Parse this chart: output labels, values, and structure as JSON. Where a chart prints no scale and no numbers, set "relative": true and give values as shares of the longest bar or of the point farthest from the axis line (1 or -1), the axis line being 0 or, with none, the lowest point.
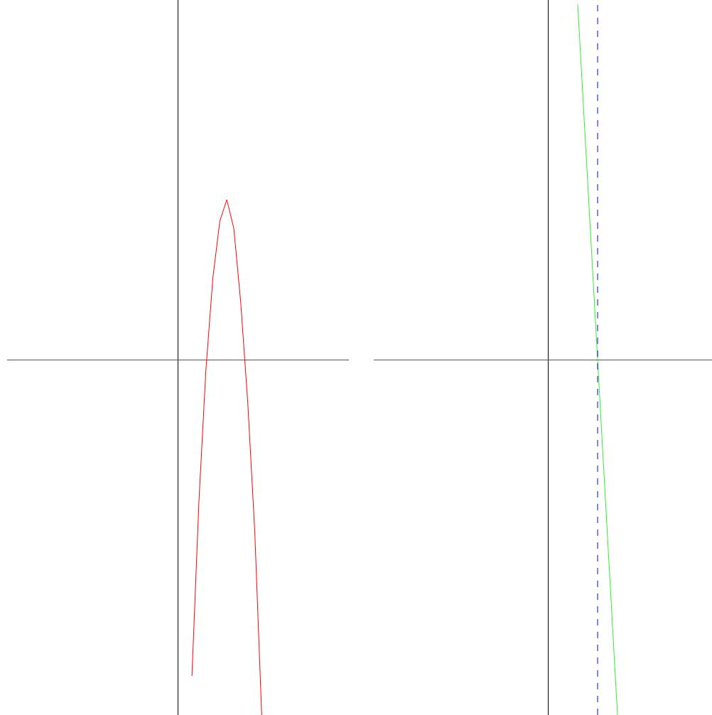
{
  "chart_data": [
    {
      "type": "line",
      "relative": true,
      "categories": [
        null,
        null,
        null,
        null,
        null,
        null,
        null,
        null,
        null,
        null,
        null,
        null,
        null,
        null,
        null,
        null,
        null,
        null,
        null,
        null,
        null,
        null,
        null,
        null,
        null,
        null,
        null,
        null,
        null,
        null,
        null,
        null,
        null,
        null,
        null,
        null,
        null,
        null,
        null,
        null,
        null,
        null,
        null,
        null,
        null,
        null,
        null,
        null,
        null
      ],
      "series": [
        {
          "color": "#ff0000",
          "values": [
            null,
            null,
            null,
            null,
            null,
            null,
            null,
            null,
            null,
            null,
            null,
            null,
            null,
            null,
            null,
            null,
            null,
            null,
            null,
            null,
            null,
            null,
            null,
            null,
            null,
            null,
            -0.89,
            -0.4,
            -0.03,
            0.23,
            0.39,
            0.45,
            0.37,
            0.16,
            -0.12,
            -0.48,
            -1.0,
            null,
            null,
            null,
            null,
            null,
            null,
            null,
            null,
            null,
            null,
            null,
            null
          ]
        }
      ],
      "marker": "none",
      "line_style": "solid"
    },
    {
      "type": "line",
      "relative": true,
      "categories": [
        null,
        null,
        null,
        null,
        null,
        null,
        null,
        null,
        null,
        null,
        null,
        null,
        null,
        null,
        null,
        null,
        null,
        null,
        null,
        null,
        null,
        null,
        null,
        null,
        null,
        null,
        null,
        null,
        null,
        null,
        null,
        null,
        null,
        null
      ],
      "series": [
        {
          "color": "#33ee33",
          "values": [
            null,
            null,
            null,
            null,
            null,
            null,
            null,
            null,
            null,
            null,
            null,
            null,
            null,
            null,
            null,
            null,
            null,
            null,
            null,
            null,
            1.0,
            0.5,
            0.0,
            -0.5,
            -1.0,
            null,
            null,
            null,
            null,
            null,
            null,
            null,
            null,
            null
          ]
        }
      ],
      "marker": "none",
      "line_style": "solid"
    }
  ]
}
